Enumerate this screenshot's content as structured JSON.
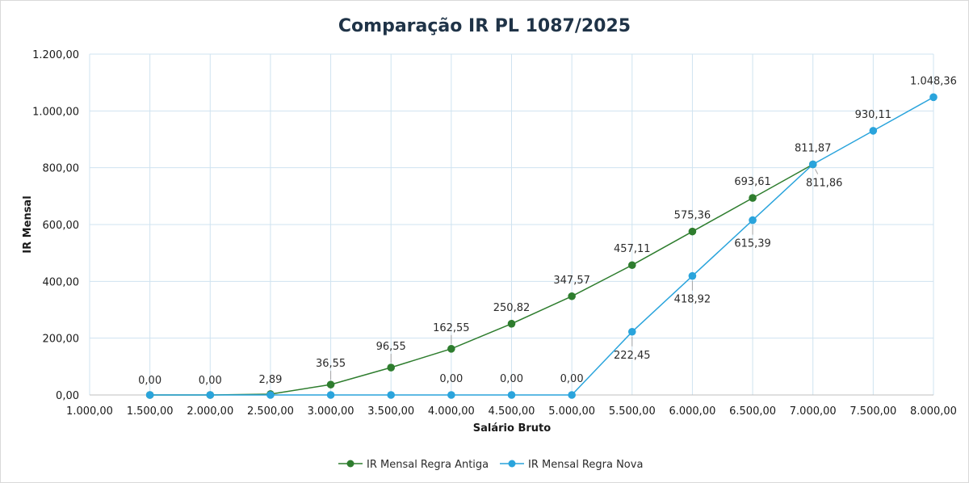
{
  "chart_data": {
    "type": "line",
    "title": "Comparação IR PL 1087/2025",
    "xlabel": "Salário Bruto",
    "ylabel": "IR Mensal",
    "xlim": [
      1000,
      8000
    ],
    "ylim": [
      0,
      1200
    ],
    "x_ticks": [
      "1.000,00",
      "1.500,00",
      "2.000,00",
      "2.500,00",
      "3.000,00",
      "3.500,00",
      "4.000,00",
      "4.500,00",
      "5.000,00",
      "5.500,00",
      "6.000,00",
      "6.500,00",
      "7.000,00",
      "7.500,00",
      "8.000,00"
    ],
    "y_ticks": [
      "0,00",
      "200,00",
      "400,00",
      "600,00",
      "800,00",
      "1.000,00",
      "1.200,00"
    ],
    "grid": true,
    "legend_position": "bottom",
    "series": [
      {
        "name": "IR Mensal Regra Antiga",
        "color": "#2e7d2e",
        "x": [
          1500,
          2000,
          2500,
          3000,
          3500,
          4000,
          4500,
          5000,
          5500,
          6000,
          6500,
          7000
        ],
        "values": [
          0,
          0,
          2.89,
          36.55,
          96.55,
          162.55,
          250.82,
          347.57,
          457.11,
          575.36,
          693.61,
          811.87
        ],
        "labels": [
          "0,00",
          "0,00",
          "2,89",
          "36,55",
          "96,55",
          "162,55",
          "250,82",
          "347,57",
          "457,11",
          "575,36",
          "693,61",
          "811,87"
        ]
      },
      {
        "name": "IR Mensal Regra Nova",
        "color": "#2aa4dc",
        "x": [
          1500,
          2000,
          2500,
          3000,
          3500,
          4000,
          4500,
          5000,
          5500,
          6000,
          6500,
          7000,
          7500,
          8000
        ],
        "values": [
          0,
          0,
          0,
          0,
          0,
          0,
          0,
          0,
          222.45,
          418.92,
          615.39,
          811.86,
          930.11,
          1048.36
        ],
        "labels": [
          "",
          "",
          "",
          "",
          "",
          "0,00",
          "0,00",
          "0,00",
          "222,45",
          "418,92",
          "615,39",
          "811,86",
          "930,11",
          "1.048,36"
        ]
      }
    ]
  }
}
